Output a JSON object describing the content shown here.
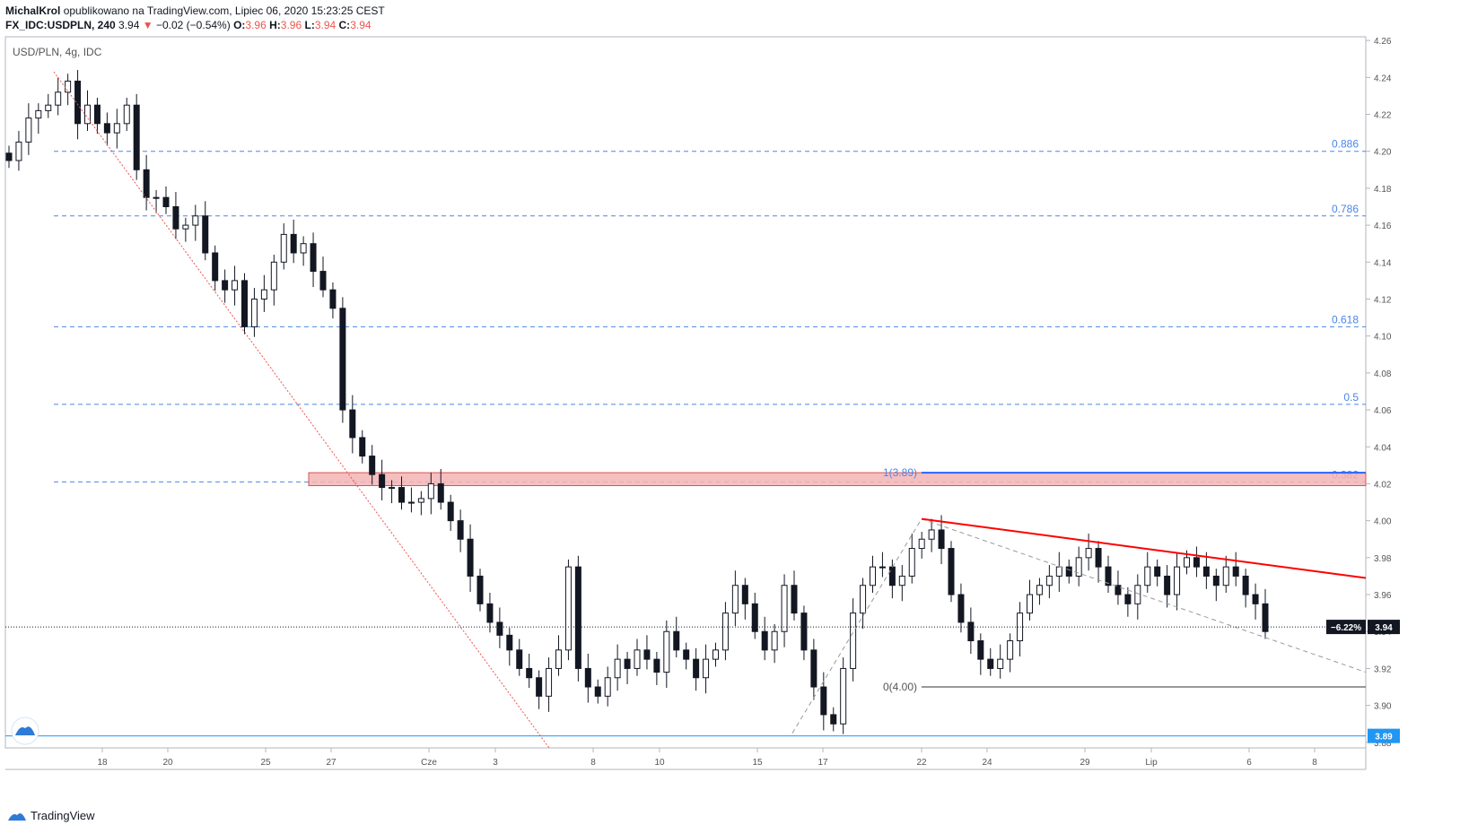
{
  "header": {
    "author": "MichalKrol",
    "published": "opublikowano na TradingView.com, Lipiec 06, 2020 15:23:25 CEST",
    "symbol": "FX_IDC:USDPLN, 240",
    "last": "3.94",
    "change": "−0.02 (−0.54%)",
    "o_label": "O:",
    "o": "3.96",
    "h_label": "H:",
    "h": "3.96",
    "l_label": "L:",
    "l": "3.94",
    "c_label": "C:",
    "c": "3.94",
    "down_arrow": "▼"
  },
  "legend": "USD/PLN, 4g, IDC",
  "footer": {
    "brand": "TradingView",
    "logo_icon": "tradingview-logo-icon"
  },
  "colors": {
    "bull": "#ffffff",
    "bear": "#131722",
    "fib": "#4a86e8",
    "resistance": "#ff0000",
    "zone": "#f4b4b4",
    "level_line": "#2962ff"
  },
  "chart_data": {
    "type": "candlestick",
    "symbol": "USD/PLN",
    "y_ticks": [
      "4.26",
      "4.24",
      "4.22",
      "4.20",
      "4.18",
      "4.16",
      "4.14",
      "4.12",
      "4.10",
      "4.08",
      "4.06",
      "4.04",
      "4.02",
      "4.00",
      "3.98",
      "3.96",
      "3.94",
      "3.92",
      "3.90",
      "3.88"
    ],
    "x_ticks": [
      "18",
      "20",
      "25",
      "27",
      "Cze",
      "3",
      "8",
      "10",
      "15",
      "17",
      "22",
      "24",
      "29",
      "Lip",
      "6",
      "8"
    ],
    "ylim": [
      3.877,
      4.262
    ],
    "fib_levels": [
      {
        "label": "0.886",
        "value": 4.2
      },
      {
        "label": "0.786",
        "value": 4.165
      },
      {
        "label": "0.618",
        "value": 4.105
      },
      {
        "label": "0.5",
        "value": 4.063
      },
      {
        "label": "0.382",
        "value": 4.021
      }
    ],
    "fib_anchor_1": {
      "label": "1(3.89)",
      "value": 4.026
    },
    "fib_anchor_0": {
      "label": "0(4.00)",
      "value": 3.91
    },
    "price_badge": {
      "pct": "−6.22%",
      "price": "3.94",
      "value": 3.9425
    },
    "low_badge": {
      "price": "3.89",
      "value": 3.8835
    },
    "resistance_zone": [
      4.019,
      4.026
    ],
    "resistance_trendline": [
      {
        "x": "22",
        "y": 4.001
      },
      {
        "x": "end",
        "y": 3.969
      }
    ],
    "candles_approx": [
      4.195,
      4.205,
      4.218,
      4.222,
      4.225,
      4.232,
      4.238,
      4.215,
      4.225,
      4.215,
      4.21,
      4.215,
      4.225,
      4.19,
      4.175,
      4.175,
      4.17,
      4.158,
      4.16,
      4.165,
      4.145,
      4.13,
      4.125,
      4.13,
      4.105,
      4.12,
      4.125,
      4.14,
      4.155,
      4.145,
      4.15,
      4.135,
      4.125,
      4.115,
      4.06,
      4.045,
      4.035,
      4.025,
      4.018,
      4.018,
      4.01,
      4.01,
      4.012,
      4.02,
      4.01,
      4.0,
      3.99,
      3.97,
      3.955,
      3.945,
      3.938,
      3.93,
      3.92,
      3.915,
      3.905,
      3.92,
      3.93,
      3.975,
      3.92,
      3.91,
      3.905,
      3.915,
      3.925,
      3.92,
      3.93,
      3.925,
      3.918,
      3.94,
      3.93,
      3.925,
      3.915,
      3.925,
      3.93,
      3.95,
      3.965,
      3.955,
      3.94,
      3.93,
      3.94,
      3.965,
      3.95,
      3.93,
      3.91,
      3.895,
      3.89,
      3.92,
      3.95,
      3.965,
      3.975,
      3.975,
      3.965,
      3.97,
      3.985,
      3.99,
      3.995,
      3.985,
      3.96,
      3.945,
      3.935,
      3.925,
      3.92,
      3.925,
      3.935,
      3.95,
      3.96,
      3.965,
      3.97,
      3.975,
      3.97,
      3.98,
      3.985,
      3.975,
      3.965,
      3.96,
      3.955,
      3.965,
      3.975,
      3.97,
      3.96,
      3.975,
      3.98,
      3.975,
      3.97,
      3.965,
      3.975,
      3.97,
      3.96,
      3.955,
      3.94
    ]
  }
}
